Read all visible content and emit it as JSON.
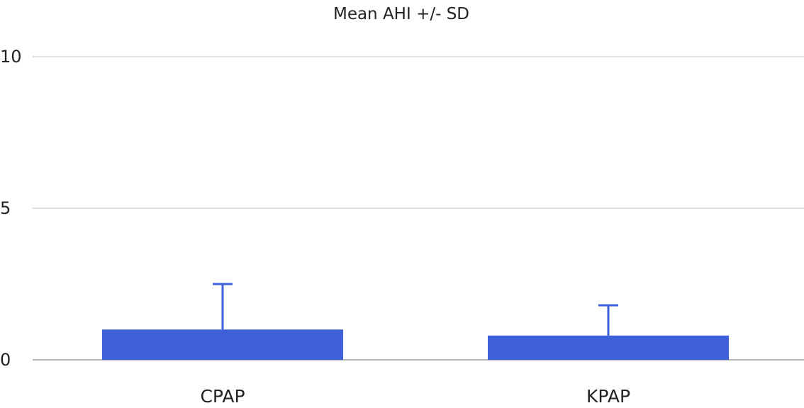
{
  "chart_data": {
    "type": "bar",
    "title": "Mean AHI +/- SD",
    "xlabel": "",
    "ylabel": "",
    "categories": [
      "CPAP",
      "KPAP"
    ],
    "series": [
      {
        "values": [
          1.0,
          0.8
        ],
        "sd": [
          1.5,
          1.0
        ]
      }
    ],
    "ylim": [
      0,
      10
    ],
    "yticks": [
      0,
      5,
      10
    ],
    "ytick_labels": [
      "0",
      "5",
      "10"
    ],
    "grid": true,
    "legend": "none",
    "colors": {
      "bar": "#3e61d9",
      "error_bar": "#3e61d9",
      "gridline": "#bdbdbd",
      "baseline": "#9e9e9e",
      "text": "#222222"
    }
  }
}
